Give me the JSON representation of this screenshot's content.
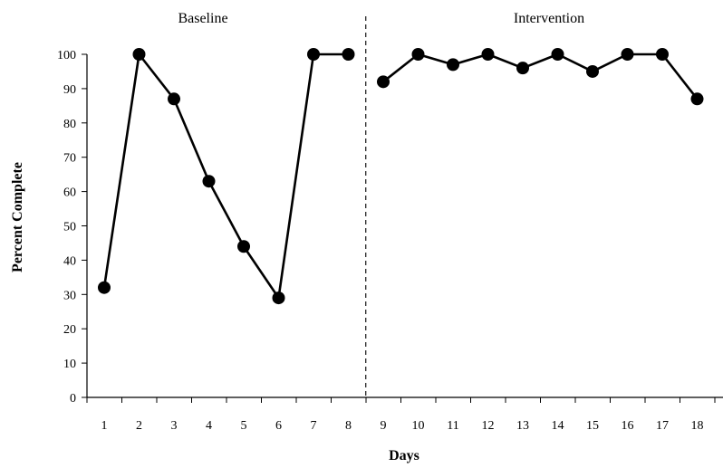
{
  "chart_data": {
    "type": "line",
    "xlabel": "Days",
    "ylabel": "Percent Complete",
    "x": [
      1,
      2,
      3,
      4,
      5,
      6,
      7,
      8,
      9,
      10,
      11,
      12,
      13,
      14,
      15,
      16,
      17,
      18
    ],
    "x_tick_labels": [
      "1",
      "2",
      "3",
      "4",
      "5",
      "6",
      "7",
      "8",
      "9",
      "10",
      "11",
      "12",
      "13",
      "14",
      "15",
      "16",
      "17",
      "18"
    ],
    "y_tick_labels": [
      "0",
      "10",
      "20",
      "30",
      "40",
      "50",
      "60",
      "70",
      "80",
      "90",
      "100"
    ],
    "ylim": [
      0,
      100
    ],
    "grid": false,
    "phases": [
      {
        "label": "Baseline",
        "days": [
          1,
          8
        ]
      },
      {
        "label": "Intervention",
        "days": [
          9,
          18
        ]
      }
    ],
    "phase_change_between": [
      8,
      9
    ],
    "series": [
      {
        "phase": "Baseline",
        "x": [
          1,
          2,
          3,
          4,
          5,
          6,
          7,
          8
        ],
        "values": [
          32,
          100,
          87,
          63,
          44,
          29,
          100,
          100
        ]
      },
      {
        "phase": "Intervention",
        "x": [
          9,
          10,
          11,
          12,
          13,
          14,
          15,
          16,
          17,
          18
        ],
        "values": [
          92,
          100,
          97,
          100,
          96,
          100,
          95,
          100,
          100,
          87
        ]
      }
    ],
    "colors": {
      "line": "#000000",
      "marker": "#000000",
      "phase_line": "#000000"
    }
  }
}
